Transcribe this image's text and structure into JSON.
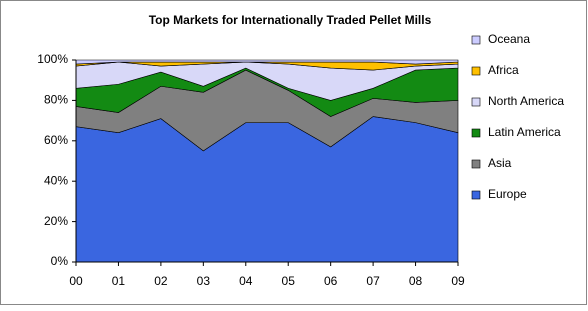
{
  "chart_data": {
    "type": "stacked_area_100",
    "title": "Top Markets for Internationally Traded Pellet Mills",
    "categories": [
      "00",
      "01",
      "02",
      "03",
      "04",
      "05",
      "06",
      "07",
      "08",
      "09"
    ],
    "series": [
      {
        "name": "Europe",
        "color": "#3a66e0",
        "values": [
          67,
          64,
          71,
          55,
          69,
          69,
          57,
          72,
          69,
          64
        ]
      },
      {
        "name": "Asia",
        "color": "#808080",
        "values": [
          10,
          10,
          16,
          29,
          26,
          16,
          15,
          9,
          10,
          16
        ]
      },
      {
        "name": "Latin America",
        "color": "#138a13",
        "values": [
          9,
          14,
          7,
          3,
          1,
          1,
          8,
          5,
          16,
          16
        ]
      },
      {
        "name": "North America",
        "color": "#d8d8f8",
        "values": [
          11,
          11,
          3,
          11,
          3,
          12,
          16,
          9,
          2,
          2
        ]
      },
      {
        "name": "Africa",
        "color": "#ffc000",
        "values": [
          1,
          0,
          2,
          1,
          0,
          1,
          3,
          4,
          1,
          1
        ]
      },
      {
        "name": "Oceana",
        "color": "#ccccff",
        "values": [
          2,
          1,
          1,
          1,
          1,
          1,
          1,
          1,
          2,
          1
        ]
      }
    ],
    "ylim": [
      0,
      100
    ],
    "yticks": [
      {
        "value": 0,
        "label": "0%"
      },
      {
        "value": 20,
        "label": "20%"
      },
      {
        "value": 40,
        "label": "40%"
      },
      {
        "value": 60,
        "label": "60%"
      },
      {
        "value": 80,
        "label": "80%"
      },
      {
        "value": 100,
        "label": "100%"
      }
    ],
    "legend": "right"
  }
}
